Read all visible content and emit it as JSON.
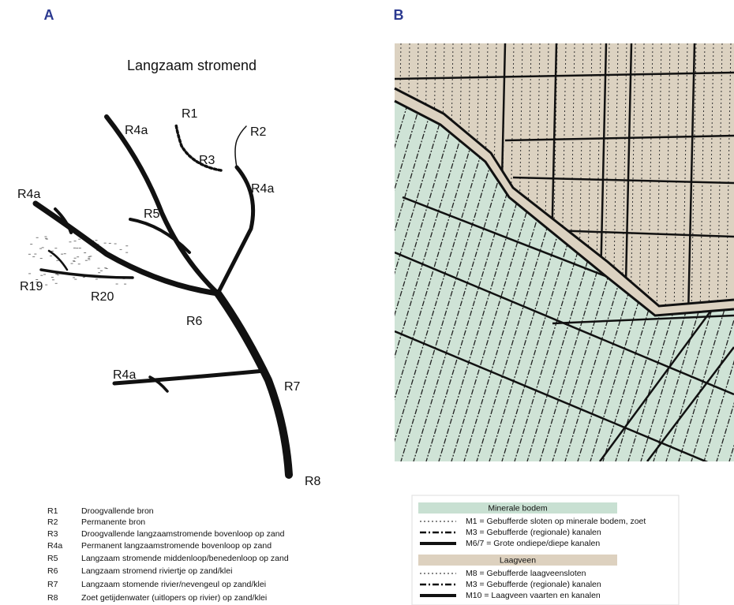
{
  "panel_a": {
    "label": "A",
    "title": "Langzaam stromend",
    "tree_labels": [
      "R1",
      "R2",
      "R3",
      "R4a",
      "R4a",
      "R5",
      "R4a",
      "R19",
      "R20",
      "R6",
      "R7",
      "R4a",
      "R8"
    ],
    "legend": [
      {
        "code": "R1",
        "description": "Droogvallende bron"
      },
      {
        "code": "R2",
        "description": "Permanente bron"
      },
      {
        "code": "R3",
        "description": "Droogvallende langzaamstromende bovenloop op zand"
      },
      {
        "code": "R4a",
        "description": "Permanent langzaamstromende bovenloop op zand"
      },
      {
        "code": "R5",
        "description": "Langzaam stromende middenloop/benedenloop op zand"
      },
      {
        "code": "R6",
        "description": "Langzaam stromend riviertje op zand/klei"
      },
      {
        "code": "R7",
        "description": "Langzaam stomende rivier/nevengeul op zand/klei"
      },
      {
        "code": "R8",
        "description": "Zoet getijdenwater (uitlopers op rivier) op zand/klei"
      }
    ]
  },
  "panel_b": {
    "label": "B",
    "legend": [
      {
        "title": "Minerale bodem",
        "items": [
          "M1 = Gebufferde sloten op minerale bodem, zoet",
          "M3 = Gebufferde (regionale) kanalen",
          "M6/7 = Grote ondiepe/diepe kanalen"
        ]
      },
      {
        "title": "Laagveen",
        "items": [
          "M8 = Gebufferde laagveensloten",
          "M3 = Gebufferde (regionale) kanalen",
          "M10 = Laagveen vaarten en kanalen"
        ]
      }
    ]
  }
}
